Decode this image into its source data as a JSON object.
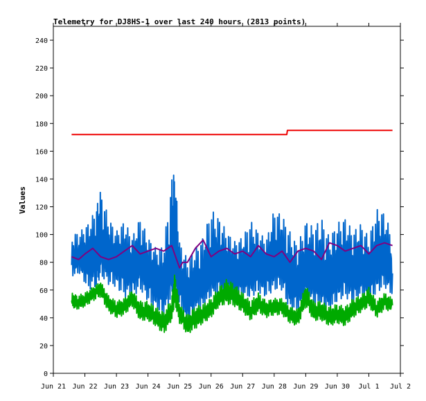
{
  "chart_data": {
    "type": "line",
    "title": "Telemetry for DJ8HS-1 over last 240 hours (2813 points)",
    "xlabel": "",
    "ylabel": "Values",
    "ylim": [
      0,
      250
    ],
    "yticks": [
      0,
      20,
      40,
      60,
      80,
      100,
      120,
      140,
      160,
      180,
      200,
      220,
      240
    ],
    "x_tick_labels": [
      "Jun 21",
      "Jun 22",
      "Jun 23",
      "Jun 24",
      "Jun 25",
      "Jun 26",
      "Jun 27",
      "Jun 28",
      "Jun 29",
      "Jun 30",
      "Jul 1",
      "Jul 2"
    ],
    "x_range_days": [
      0,
      11
    ],
    "grid": false,
    "legend": "none",
    "series": [
      {
        "color": "#0066cc",
        "width": 2,
        "x": [
          0.58,
          0.85,
          1.1,
          1.35,
          1.5,
          1.75,
          2.0,
          2.25,
          2.5,
          2.75,
          3.0,
          3.25,
          3.5,
          3.75,
          3.85,
          4.0,
          4.25,
          4.5,
          4.75,
          5.0,
          5.25,
          5.5,
          5.75,
          6.0,
          6.25,
          6.5,
          6.75,
          7.0,
          7.25,
          7.5,
          7.75,
          8.0,
          8.25,
          8.5,
          8.75,
          9.0,
          9.25,
          9.5,
          9.75,
          10.0,
          10.25,
          10.5,
          10.75
        ],
        "y": [
          78,
          82,
          80,
          84,
          88,
          82,
          80,
          78,
          75,
          80,
          72,
          65,
          60,
          72,
          78,
          65,
          52,
          58,
          62,
          70,
          74,
          72,
          70,
          72,
          70,
          76,
          74,
          78,
          80,
          65,
          62,
          70,
          68,
          65,
          60,
          70,
          74,
          70,
          72,
          68,
          78,
          78,
          72
        ],
        "min": [
          70,
          72,
          60,
          62,
          70,
          64,
          62,
          55,
          55,
          60,
          52,
          45,
          42,
          55,
          60,
          48,
          35,
          45,
          48,
          55,
          56,
          55,
          52,
          55,
          55,
          58,
          55,
          60,
          60,
          45,
          45,
          52,
          50,
          48,
          45,
          52,
          55,
          50,
          55,
          52,
          58,
          62,
          56
        ],
        "max": [
          100,
          102,
          108,
          118,
          132,
          112,
          102,
          110,
          98,
          112,
          98,
          90,
          92,
          140,
          146,
          95,
          82,
          90,
          98,
          118,
          112,
          102,
          95,
          98,
          110,
          102,
          96,
          118,
          114,
          102,
          92,
          110,
          105,
          112,
          98,
          108,
          112,
          102,
          108,
          98,
          118,
          116,
          98
        ]
      },
      {
        "color": "#800080",
        "width": 2,
        "x": [
          0.58,
          0.8,
          1.0,
          1.25,
          1.5,
          1.75,
          2.0,
          2.25,
          2.5,
          2.75,
          3.0,
          3.25,
          3.5,
          3.75,
          4.0,
          4.1,
          4.25,
          4.5,
          4.75,
          5.0,
          5.25,
          5.5,
          5.75,
          6.0,
          6.25,
          6.5,
          6.75,
          7.0,
          7.25,
          7.5,
          7.75,
          8.0,
          8.25,
          8.5,
          8.75,
          9.0,
          9.25,
          9.5,
          9.75,
          10.0,
          10.25,
          10.5,
          10.75
        ],
        "y": [
          84,
          82,
          86,
          90,
          84,
          82,
          84,
          88,
          92,
          86,
          88,
          90,
          88,
          92,
          76,
          80,
          80,
          90,
          96,
          84,
          88,
          90,
          86,
          88,
          84,
          92,
          86,
          84,
          88,
          80,
          88,
          90,
          88,
          82,
          94,
          92,
          88,
          90,
          92,
          86,
          92,
          94,
          92
        ]
      },
      {
        "color": "#00aa00",
        "width": 2,
        "x": [
          0.58,
          0.75,
          1.0,
          1.25,
          1.5,
          1.75,
          2.0,
          2.25,
          2.5,
          2.75,
          3.0,
          3.25,
          3.5,
          3.75,
          3.85,
          4.0,
          4.25,
          4.5,
          4.75,
          5.0,
          5.25,
          5.5,
          5.75,
          6.0,
          6.25,
          6.5,
          6.75,
          7.0,
          7.25,
          7.5,
          7.75,
          8.0,
          8.25,
          8.5,
          8.75,
          9.0,
          9.25,
          9.5,
          9.75,
          10.0,
          10.25,
          10.5,
          10.75
        ],
        "y": [
          54,
          50,
          52,
          58,
          62,
          50,
          46,
          48,
          55,
          44,
          44,
          40,
          36,
          44,
          62,
          44,
          34,
          40,
          42,
          46,
          54,
          58,
          56,
          50,
          44,
          50,
          46,
          48,
          48,
          42,
          40,
          56,
          44,
          44,
          40,
          42,
          40,
          46,
          50,
          54,
          46,
          52,
          49
        ],
        "min": [
          48,
          46,
          48,
          52,
          55,
          44,
          40,
          42,
          48,
          38,
          38,
          34,
          28,
          38,
          50,
          36,
          28,
          32,
          36,
          40,
          48,
          50,
          48,
          44,
          38,
          44,
          40,
          42,
          42,
          36,
          34,
          48,
          38,
          38,
          34,
          36,
          34,
          40,
          44,
          48,
          40,
          46,
          44
        ],
        "max": [
          58,
          56,
          58,
          62,
          66,
          56,
          52,
          54,
          60,
          52,
          52,
          48,
          44,
          54,
          72,
          50,
          42,
          48,
          50,
          54,
          62,
          68,
          64,
          58,
          52,
          58,
          52,
          54,
          54,
          48,
          46,
          64,
          52,
          52,
          48,
          50,
          48,
          54,
          56,
          62,
          52,
          58,
          54
        ]
      },
      {
        "color": "#ee0000",
        "width": 2,
        "x": [
          0.58,
          7.4,
          7.42,
          10.75
        ],
        "y": [
          172,
          172,
          175,
          175
        ]
      },
      {
        "color": "#000000",
        "width": 1,
        "x": [
          0.58,
          10.75
        ],
        "y": [
          0,
          0
        ]
      }
    ]
  }
}
